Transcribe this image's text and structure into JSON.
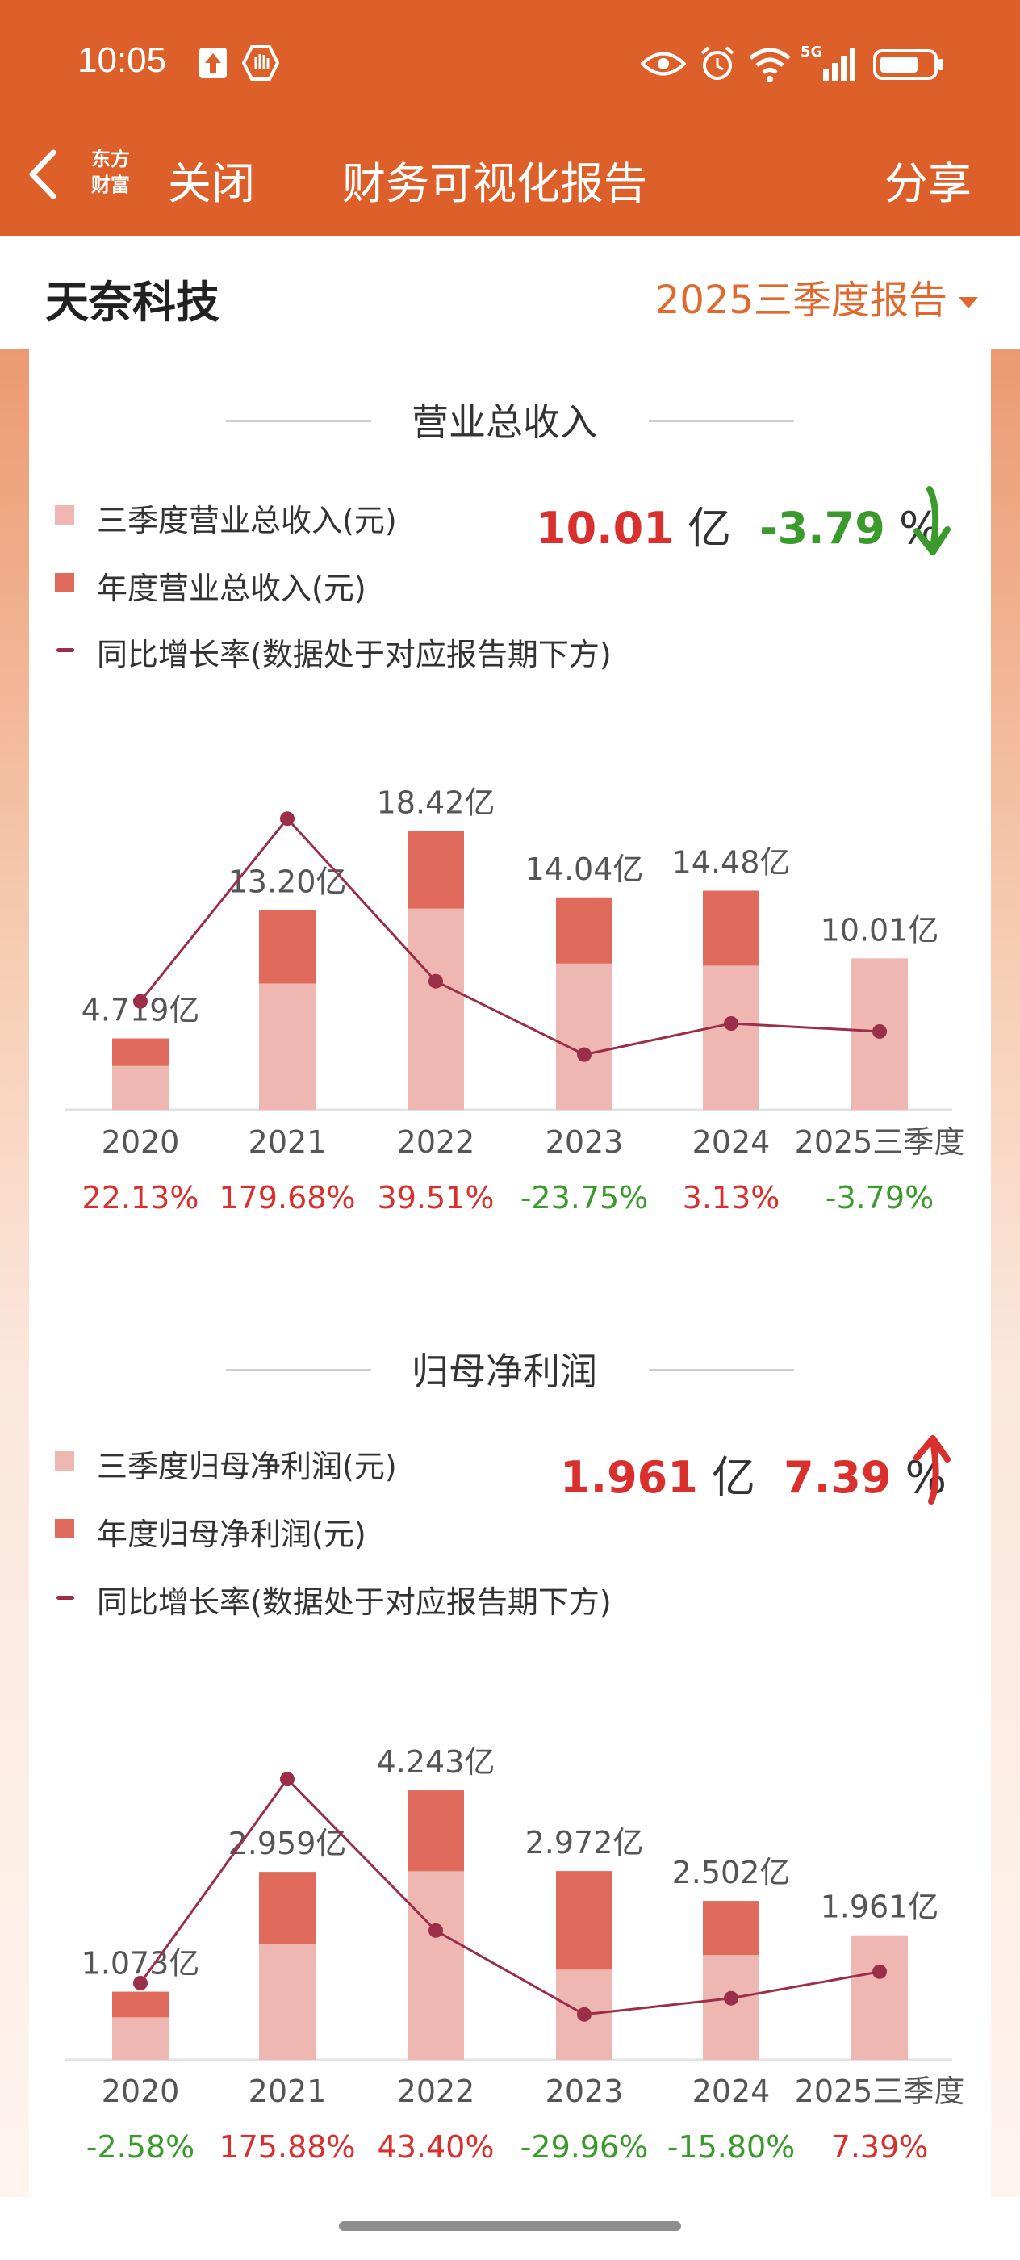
{
  "status_bar": {
    "time": "10:05",
    "network": "5G"
  },
  "nav": {
    "logo_line1": "东方",
    "logo_line2": "财富",
    "close_label": "关闭",
    "title": "财务可视化报告",
    "share_label": "分享"
  },
  "company": {
    "name": "天奈科技",
    "report_period": "2025三季度报告"
  },
  "colors": {
    "header": "#dd5f2a",
    "q3_bar": "#efb7b1",
    "annual_bar": "#e06a5c",
    "growth_line": "#9b2e48",
    "up": "#d9302e",
    "down": "#3b9a2c"
  },
  "revenue": {
    "title": "营业总收入",
    "legend_q3": "三季度营业总收入(元)",
    "legend_annual": "年度营业总收入(元)",
    "legend_growth": "同比增长率(数据处于对应报告期下方)",
    "metric_value": "10.01",
    "metric_unit": "亿",
    "metric_pct": "-3.79",
    "metric_pct_unit": "%",
    "trend": "down"
  },
  "profit": {
    "title": "归母净利润",
    "legend_q3": "三季度归母净利润(元)",
    "legend_annual": "年度归母净利润(元)",
    "legend_growth": "同比增长率(数据处于对应报告期下方)",
    "metric_value": "1.961",
    "metric_unit": "亿",
    "metric_pct": "7.39",
    "metric_pct_unit": "%",
    "trend": "up"
  },
  "chart_data": [
    {
      "type": "bar",
      "title": "营业总收入",
      "categories": [
        "2020",
        "2021",
        "2022",
        "2023",
        "2024",
        "2025三季度"
      ],
      "unit": "亿",
      "series": [
        {
          "name": "三季度营业总收入(元)",
          "values": [
            2.9,
            8.35,
            13.3,
            9.67,
            9.53,
            10.01
          ]
        },
        {
          "name": "年度营业总收入(元)",
          "values": [
            4.719,
            13.2,
            18.42,
            14.04,
            14.48,
            null
          ]
        }
      ],
      "bar_labels": [
        "4.719亿",
        "13.20亿",
        "18.42亿",
        "14.04亿",
        "14.48亿",
        "10.01亿"
      ],
      "growth": {
        "name": "同比增长率(数据处于对应报告期下方)",
        "values": [
          22.13,
          179.68,
          39.51,
          -23.75,
          3.13,
          -3.79
        ]
      },
      "growth_labels": [
        "22.13%",
        "179.68%",
        "39.51%",
        "-23.75%",
        "3.13%",
        "-3.79%"
      ],
      "ylim": [
        0,
        20
      ]
    },
    {
      "type": "bar",
      "title": "归母净利润",
      "categories": [
        "2020",
        "2021",
        "2022",
        "2023",
        "2024",
        "2025三季度"
      ],
      "unit": "亿",
      "series": [
        {
          "name": "三季度归母净利润(元)",
          "values": [
            0.67,
            1.83,
            2.97,
            1.42,
            1.65,
            1.961
          ]
        },
        {
          "name": "年度归母净利润(元)",
          "values": [
            1.073,
            2.959,
            4.243,
            2.972,
            2.502,
            null
          ]
        }
      ],
      "bar_labels": [
        "1.073亿",
        "2.959亿",
        "4.243亿",
        "2.972亿",
        "2.502亿",
        "1.961亿"
      ],
      "growth": {
        "name": "同比增长率(数据处于对应报告期下方)",
        "values": [
          -2.58,
          175.88,
          43.4,
          -29.96,
          -15.8,
          7.39
        ]
      },
      "growth_labels": [
        "-2.58%",
        "175.88%",
        "43.40%",
        "-29.96%",
        "-15.80%",
        "7.39%"
      ],
      "ylim": [
        0,
        4.6
      ]
    }
  ]
}
